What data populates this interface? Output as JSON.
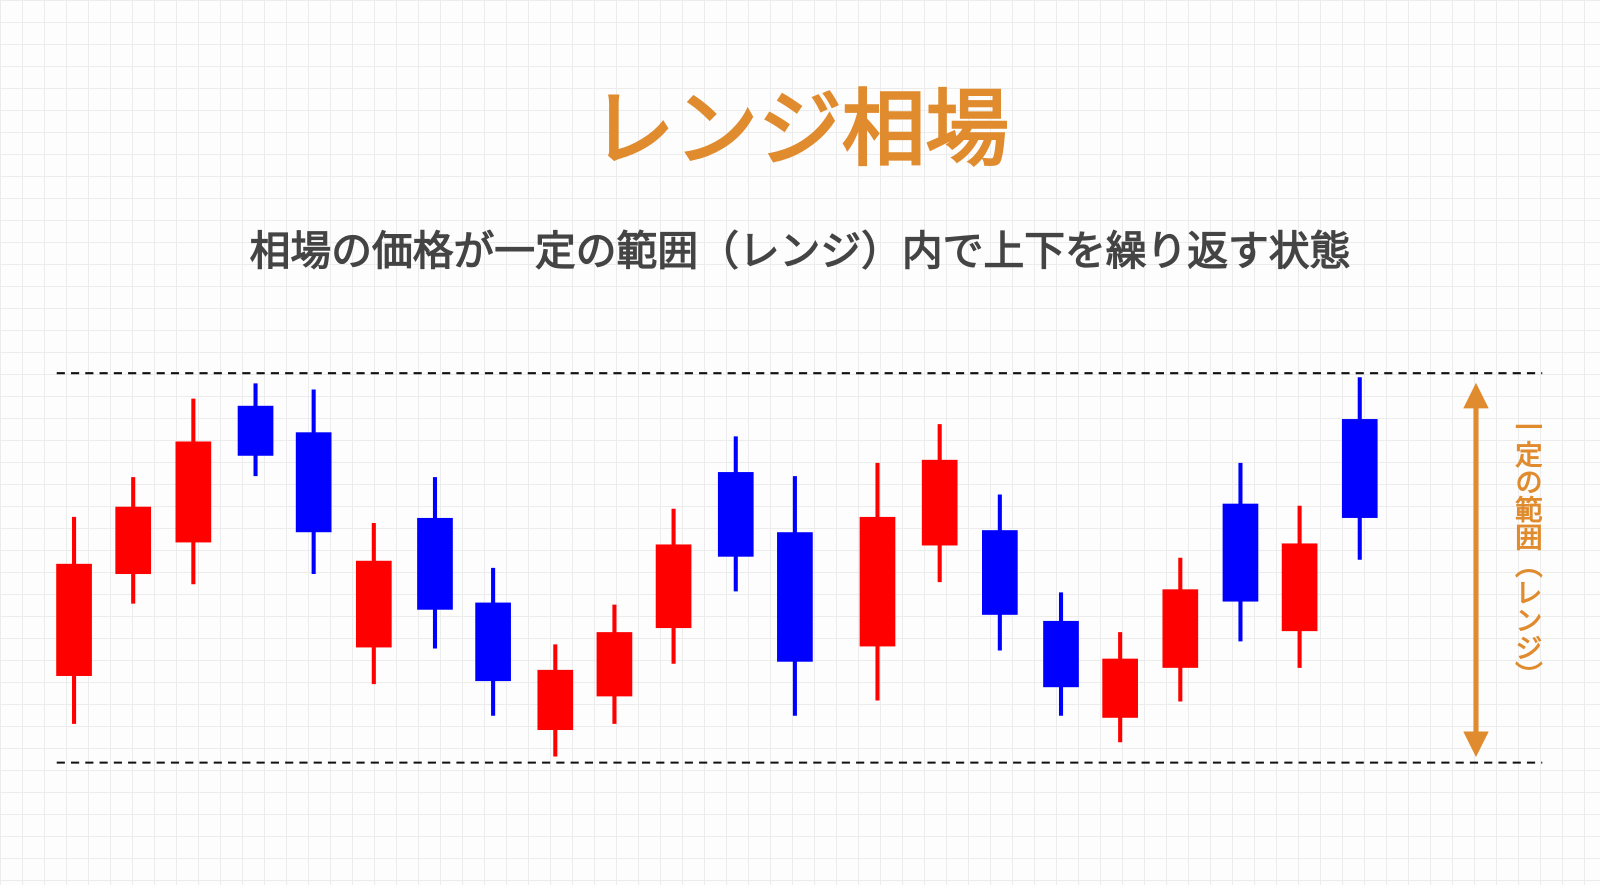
{
  "title": "レンジ相場",
  "subtitle": "相場の価格が一定の範囲（レンジ）内で上下を繰り返す状態",
  "range_label": "一定の範囲（レンジ）"
}
